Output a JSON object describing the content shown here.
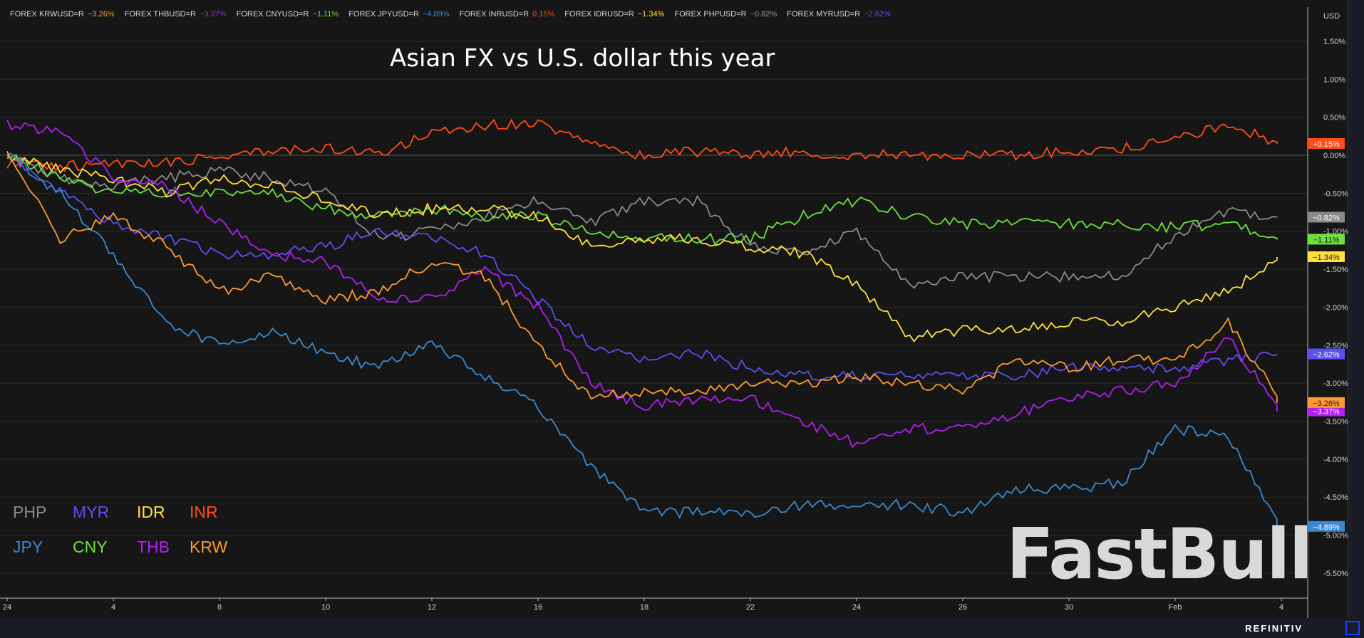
{
  "header": {
    "items": [
      {
        "label": "FOREX KRWUSD=R",
        "value": "−3.26%",
        "color": "#ff9a30"
      },
      {
        "label": "FOREX THBUSD=R",
        "value": "−3.37%",
        "color": "#b020f0"
      },
      {
        "label": "FOREX CNYUSD=R",
        "value": "−1.11%",
        "color": "#6ee040"
      },
      {
        "label": "FOREX JPYUSD=R",
        "value": "−4.89%",
        "color": "#3a8ad0"
      },
      {
        "label": "FOREX INRUSD=R",
        "value": "0.15%",
        "color": "#ff4d1a"
      },
      {
        "label": "FOREX IDRUSD=R",
        "value": "−1.34%",
        "color": "#ffe040"
      },
      {
        "label": "FOREX PHPUSD=R",
        "value": "−0.82%",
        "color": "#9a9a9a"
      },
      {
        "label": "FOREX MYRUSD=R",
        "value": "−2.62%",
        "color": "#5a50f0"
      }
    ]
  },
  "footer": {
    "brand": "REFINITIV"
  },
  "watermark": "FastBull",
  "chart_data": {
    "type": "line",
    "title": "Asian FX vs U.S. dollar this year",
    "yaxis_unit": "USD",
    "ylim": [
      -5.75,
      1.75
    ],
    "yticks": [
      "1.50%",
      "1.00%",
      "0.50%",
      "0.00%",
      "-0.50%",
      "-1.00%",
      "-1.50%",
      "-2.00%",
      "-2.50%",
      "-3.00%",
      "-3.50%",
      "-4.00%",
      "-4.50%",
      "-5.00%",
      "-5.50%"
    ],
    "ytick_values": [
      1.5,
      1.0,
      0.5,
      0,
      -0.5,
      -1.0,
      -1.5,
      -2.0,
      -2.5,
      -3.0,
      -3.5,
      -4.0,
      -4.5,
      -5.0,
      -5.5
    ],
    "x": [
      "2024-01-02",
      "2024-01-03",
      "2024-01-04",
      "2024-01-05",
      "2024-01-08",
      "2024-01-09",
      "2024-01-10",
      "2024-01-11",
      "2024-01-12",
      "2024-01-15",
      "2024-01-16",
      "2024-01-17",
      "2024-01-18",
      "2024-01-19",
      "2024-01-22",
      "2024-01-23",
      "2024-01-24",
      "2024-01-25",
      "2024-01-26",
      "2024-01-29",
      "2024-01-30",
      "2024-01-31",
      "2024-02-01",
      "2024-02-02",
      "2024-02-05"
    ],
    "xticks": [
      {
        "label": "24",
        "date": "2024-01-02"
      },
      {
        "label": "4",
        "date": "2024-01-04"
      },
      {
        "label": "8",
        "date": "2024-01-08"
      },
      {
        "label": "10",
        "date": "2024-01-10"
      },
      {
        "label": "12",
        "date": "2024-01-12"
      },
      {
        "label": "16",
        "date": "2024-01-16"
      },
      {
        "label": "18",
        "date": "2024-01-18"
      },
      {
        "label": "22",
        "date": "2024-01-22"
      },
      {
        "label": "24",
        "date": "2024-01-24"
      },
      {
        "label": "26",
        "date": "2024-01-26"
      },
      {
        "label": "30",
        "date": "2024-01-30"
      },
      {
        "label": "Feb",
        "date": "2024-02-01"
      },
      {
        "label": "4",
        "date": "2024-02-05"
      }
    ],
    "grid": true,
    "legend_placement": "bottom-left",
    "series": [
      {
        "name": "INR",
        "color": "#ff4d1a",
        "last": "+0.15%",
        "values": [
          -0.1,
          -0.15,
          -0.1,
          -0.1,
          0,
          0.05,
          0.1,
          0.0,
          0.3,
          0.4,
          0.4,
          0.15,
          0.0,
          0.05,
          0.0,
          0.05,
          0.0,
          0.0,
          0.0,
          0.0,
          0.05,
          0.1,
          0.2,
          0.4,
          0.15
        ]
      },
      {
        "name": "PHP",
        "color": "#8a8a8a",
        "last": "−0.82%",
        "values": [
          0,
          -0.3,
          -0.4,
          -0.3,
          -0.2,
          -0.3,
          -0.5,
          -1.1,
          -1.0,
          -0.8,
          -0.6,
          -0.9,
          -0.6,
          -0.6,
          -1.2,
          -1.3,
          -1.0,
          -1.7,
          -1.6,
          -1.6,
          -1.6,
          -1.6,
          -1.05,
          -0.75,
          -0.82
        ]
      },
      {
        "name": "CNY",
        "color": "#6ee040",
        "last": "−1.11%",
        "values": [
          0,
          -0.3,
          -0.5,
          -0.5,
          -0.5,
          -0.5,
          -0.7,
          -0.8,
          -0.7,
          -0.8,
          -0.8,
          -1.0,
          -1.1,
          -1.1,
          -1.1,
          -0.8,
          -0.6,
          -0.8,
          -0.9,
          -0.9,
          -0.9,
          -0.9,
          -0.95,
          -0.9,
          -1.11
        ]
      },
      {
        "name": "IDR",
        "color": "#ffe040",
        "last": "−1.34%",
        "values": [
          0,
          -0.2,
          -0.3,
          -0.5,
          -0.3,
          -0.4,
          -0.6,
          -0.8,
          -0.7,
          -0.7,
          -0.8,
          -1.2,
          -1.1,
          -1.1,
          -1.2,
          -1.3,
          -1.7,
          -2.4,
          -2.3,
          -2.3,
          -2.2,
          -2.2,
          -2.0,
          -1.8,
          -1.34
        ]
      },
      {
        "name": "MYR",
        "color": "#5a50f0",
        "last": "−2.62%",
        "values": [
          0,
          -0.5,
          -0.9,
          -1.1,
          -1.3,
          -1.3,
          -1.2,
          -1.0,
          -1.1,
          -1.3,
          -1.9,
          -2.5,
          -2.7,
          -2.6,
          -2.8,
          -2.9,
          -2.9,
          -2.9,
          -2.9,
          -2.9,
          -2.8,
          -2.8,
          -2.8,
          -2.7,
          -2.62
        ]
      },
      {
        "name": "JPY",
        "color": "#3a8ad0",
        "last": "−4.89%",
        "values": [
          0,
          -0.5,
          -1.3,
          -2.2,
          -2.5,
          -2.3,
          -2.6,
          -2.8,
          -2.5,
          -2.9,
          -3.3,
          -4.1,
          -4.7,
          -4.7,
          -4.7,
          -4.6,
          -4.6,
          -4.6,
          -4.7,
          -4.4,
          -4.4,
          -4.3,
          -3.6,
          -3.7,
          -4.89
        ]
      },
      {
        "name": "THB",
        "color": "#b020f0",
        "last": "−3.37%",
        "values": [
          0.4,
          0.3,
          -0.3,
          -0.4,
          -0.9,
          -1.3,
          -1.4,
          -1.9,
          -1.9,
          -1.5,
          -2.0,
          -3.0,
          -3.3,
          -3.2,
          -3.2,
          -3.5,
          -3.8,
          -3.6,
          -3.6,
          -3.4,
          -3.2,
          -3.1,
          -3.0,
          -2.4,
          -3.37
        ]
      },
      {
        "name": "KRW",
        "color": "#ff9a30",
        "last": "−3.26%",
        "values": [
          0,
          -1.1,
          -0.8,
          -1.2,
          -1.8,
          -1.6,
          -1.9,
          -1.8,
          -1.4,
          -1.6,
          -2.5,
          -3.2,
          -3.1,
          -3.1,
          -3.0,
          -3.0,
          -2.9,
          -3.0,
          -3.1,
          -2.7,
          -2.8,
          -2.7,
          -2.7,
          -2.2,
          -3.26
        ]
      }
    ],
    "legend": [
      {
        "label": "PHP",
        "color": "#8a8a8a"
      },
      {
        "label": "MYR",
        "color": "#5a50f0"
      },
      {
        "label": "IDR",
        "color": "#ffe040"
      },
      {
        "label": "INR",
        "color": "#ff4d1a"
      },
      {
        "label": "JPY",
        "color": "#3a8ad0"
      },
      {
        "label": "CNY",
        "color": "#6ee040"
      },
      {
        "label": "THB",
        "color": "#b020f0"
      },
      {
        "label": "KRW",
        "color": "#ff9a30"
      }
    ]
  }
}
